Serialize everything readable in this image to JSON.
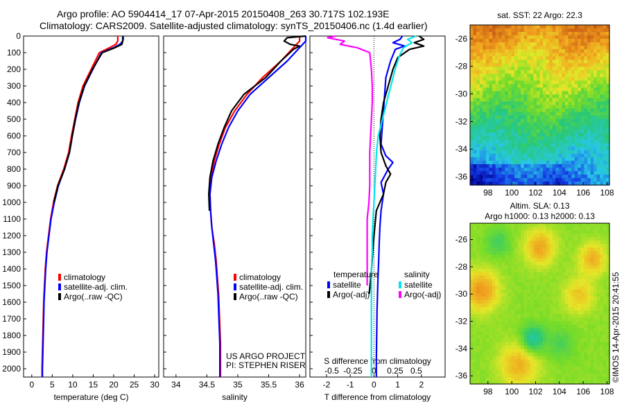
{
  "header": {
    "line1": "Argo profile: AO 5904414_17 07-Apr-2015 20150408_263 30.717S 102.193E",
    "line2": "Climatology: CARS2009. Satellite-adjusted climatology: synTS_20150406.nc (1.4d earlier)"
  },
  "colors": {
    "climatology": "#ff0000",
    "satellite": "#0000ff",
    "argo": "#000000",
    "s_satellite": "#00e5ee",
    "s_argo": "#ff00ff"
  },
  "chart_data": [
    {
      "id": "temperature",
      "type": "line",
      "xlabel": "temperature (deg C)",
      "ylabel": "",
      "xlim": [
        -2,
        31
      ],
      "ylim": [
        2050,
        0
      ],
      "xticks": [
        0,
        5,
        10,
        15,
        20,
        25,
        30
      ],
      "yticks": [
        0,
        100,
        200,
        300,
        400,
        500,
        600,
        700,
        800,
        900,
        1000,
        1100,
        1200,
        1300,
        1400,
        1500,
        1600,
        1700,
        1800,
        1900,
        2000
      ],
      "legend": [
        "climatology",
        "satellite-adj. clim.",
        "Argo(..raw -QC)"
      ],
      "series": [
        {
          "name": "climatology",
          "color": "red",
          "points": [
            [
              21.0,
              0
            ],
            [
              21.0,
              30
            ],
            [
              20.5,
              50
            ],
            [
              19.0,
              70
            ],
            [
              16.5,
              100
            ],
            [
              14.5,
              200
            ],
            [
              12.5,
              300
            ],
            [
              11.3,
              400
            ],
            [
              10.5,
              500
            ],
            [
              9.7,
              600
            ],
            [
              9.0,
              700
            ],
            [
              7.8,
              800
            ],
            [
              6.3,
              900
            ],
            [
              5.3,
              1000
            ],
            [
              4.6,
              1100
            ],
            [
              4.1,
              1200
            ],
            [
              3.6,
              1300
            ],
            [
              3.3,
              1400
            ],
            [
              3.1,
              1500
            ],
            [
              2.9,
              1600
            ],
            [
              2.8,
              1700
            ],
            [
              2.7,
              1800
            ],
            [
              2.6,
              1900
            ],
            [
              2.5,
              2000
            ],
            [
              2.5,
              2050
            ]
          ]
        },
        {
          "name": "satellite-adj. clim.",
          "color": "blue",
          "points": [
            [
              22.2,
              0
            ],
            [
              22.2,
              30
            ],
            [
              21.5,
              50
            ],
            [
              20.0,
              70
            ],
            [
              17.0,
              100
            ],
            [
              14.9,
              200
            ],
            [
              12.9,
              300
            ],
            [
              11.6,
              400
            ],
            [
              10.7,
              500
            ],
            [
              9.9,
              600
            ],
            [
              9.2,
              700
            ],
            [
              8.0,
              800
            ],
            [
              6.5,
              900
            ],
            [
              5.5,
              1000
            ],
            [
              4.7,
              1100
            ],
            [
              4.2,
              1200
            ],
            [
              3.7,
              1300
            ],
            [
              3.4,
              1400
            ],
            [
              3.2,
              1500
            ],
            [
              3.0,
              1600
            ],
            [
              2.9,
              1700
            ],
            [
              2.8,
              1800
            ],
            [
              2.7,
              1900
            ],
            [
              2.6,
              2000
            ],
            [
              2.6,
              2050
            ]
          ]
        },
        {
          "name": "Argo(..raw -QC)",
          "color": "black",
          "points": [
            [
              22.3,
              0
            ],
            [
              22.3,
              20
            ],
            [
              22.0,
              50
            ],
            [
              20.3,
              70
            ],
            [
              17.2,
              100
            ],
            [
              14.8,
              200
            ],
            [
              12.8,
              300
            ],
            [
              11.5,
              400
            ],
            [
              10.6,
              500
            ],
            [
              9.9,
              600
            ],
            [
              9.2,
              700
            ],
            [
              8.0,
              800
            ],
            [
              6.4,
              900
            ],
            [
              5.4,
              1000
            ]
          ]
        }
      ]
    },
    {
      "id": "salinity",
      "type": "line",
      "xlabel": "salinity",
      "ylabel": "",
      "xlim": [
        33.8,
        36.1
      ],
      "ylim": [
        2050,
        0
      ],
      "xticks": [
        34,
        34.5,
        35,
        35.5,
        36
      ],
      "legend": [
        "climatology",
        "satellite-adj. clim.",
        "Argo(..raw -QC)"
      ],
      "annotation": [
        "US ARGO PROJECT",
        "PI: STEPHEN RISER"
      ],
      "series": [
        {
          "name": "climatology",
          "color": "red",
          "points": [
            [
              36.0,
              0
            ],
            [
              36.0,
              30
            ],
            [
              35.9,
              70
            ],
            [
              35.7,
              150
            ],
            [
              35.4,
              250
            ],
            [
              35.15,
              350
            ],
            [
              34.95,
              450
            ],
            [
              34.8,
              550
            ],
            [
              34.7,
              650
            ],
            [
              34.62,
              750
            ],
            [
              34.57,
              850
            ],
            [
              34.55,
              950
            ],
            [
              34.56,
              1050
            ],
            [
              34.58,
              1150
            ],
            [
              34.62,
              1250
            ],
            [
              34.65,
              1350
            ],
            [
              34.67,
              1450
            ],
            [
              34.69,
              1550
            ],
            [
              34.7,
              1650
            ],
            [
              34.71,
              1750
            ],
            [
              34.72,
              1850
            ],
            [
              34.72,
              1950
            ],
            [
              34.72,
              2050
            ]
          ]
        },
        {
          "name": "satellite-adj. clim.",
          "color": "blue",
          "points": [
            [
              36.1,
              0
            ],
            [
              36.1,
              30
            ],
            [
              36.0,
              70
            ],
            [
              35.8,
              150
            ],
            [
              35.5,
              250
            ],
            [
              35.2,
              350
            ],
            [
              35.0,
              450
            ],
            [
              34.85,
              550
            ],
            [
              34.74,
              650
            ],
            [
              34.65,
              750
            ],
            [
              34.58,
              850
            ],
            [
              34.55,
              950
            ],
            [
              34.56,
              1050
            ],
            [
              34.58,
              1150
            ],
            [
              34.61,
              1250
            ],
            [
              34.64,
              1350
            ],
            [
              34.66,
              1450
            ],
            [
              34.68,
              1550
            ],
            [
              34.69,
              1650
            ],
            [
              34.7,
              1750
            ],
            [
              34.71,
              1850
            ],
            [
              34.71,
              1950
            ],
            [
              34.71,
              2050
            ]
          ]
        },
        {
          "name": "Argo(..raw -QC)",
          "color": "black",
          "points": [
            [
              36.1,
              0
            ],
            [
              35.8,
              10
            ],
            [
              35.75,
              30
            ],
            [
              35.85,
              50
            ],
            [
              36.0,
              60
            ],
            [
              35.9,
              80
            ],
            [
              35.7,
              150
            ],
            [
              35.45,
              250
            ],
            [
              35.1,
              350
            ],
            [
              34.9,
              450
            ],
            [
              34.78,
              550
            ],
            [
              34.68,
              650
            ],
            [
              34.6,
              750
            ],
            [
              34.55,
              850
            ],
            [
              34.53,
              950
            ],
            [
              34.54,
              1050
            ]
          ]
        }
      ]
    },
    {
      "id": "difference",
      "type": "line",
      "xlabel": "T difference from climatology",
      "xlabel_top": "S difference from climatology",
      "ylabel": "",
      "xlim": [
        -2.7,
        3.0
      ],
      "ylim": [
        2050,
        0
      ],
      "xticks_T": [
        -2,
        -1,
        0,
        1,
        2
      ],
      "xticks_S": [
        -0.5,
        -0.25,
        0,
        0.25,
        0.5
      ],
      "legend_T_title": "temperature",
      "legend_S_title": "salinity",
      "legend_T": [
        "satellite",
        "Argo(-adj)"
      ],
      "legend_S": [
        "satellite",
        "Argo(-adj)"
      ],
      "series": [
        {
          "name": "satellite",
          "group": "temperature",
          "color": "blue",
          "points": [
            [
              1.2,
              0
            ],
            [
              1.1,
              20
            ],
            [
              0.8,
              40
            ],
            [
              1.3,
              60
            ],
            [
              0.9,
              80
            ],
            [
              0.7,
              150
            ],
            [
              0.5,
              250
            ],
            [
              0.45,
              350
            ],
            [
              0.4,
              450
            ],
            [
              0.35,
              550
            ],
            [
              0.3,
              650
            ],
            [
              0.5,
              720
            ],
            [
              0.8,
              760
            ],
            [
              0.6,
              800
            ],
            [
              0.3,
              880
            ],
            [
              0.4,
              950
            ],
            [
              0.3,
              1050
            ],
            [
              0.25,
              1150
            ],
            [
              0.22,
              1250
            ],
            [
              0.2,
              1350
            ],
            [
              0.17,
              1450
            ],
            [
              0.15,
              1550
            ],
            [
              0.13,
              1650
            ],
            [
              0.12,
              1750
            ],
            [
              0.11,
              1850
            ],
            [
              0.1,
              1950
            ],
            [
              0.1,
              2050
            ]
          ]
        },
        {
          "name": "Argo(-adj)",
          "group": "temperature",
          "color": "black",
          "points": [
            [
              1.9,
              0
            ],
            [
              2.1,
              20
            ],
            [
              1.7,
              40
            ],
            [
              2.1,
              60
            ],
            [
              1.5,
              80
            ],
            [
              1.0,
              130
            ],
            [
              0.8,
              200
            ],
            [
              0.6,
              300
            ],
            [
              0.4,
              400
            ],
            [
              0.3,
              500
            ],
            [
              0.25,
              600
            ],
            [
              0.3,
              700
            ],
            [
              0.5,
              780
            ],
            [
              0.7,
              830
            ],
            [
              0.5,
              880
            ],
            [
              0.4,
              950
            ],
            [
              0.1,
              1050
            ],
            [
              0.0,
              1200
            ],
            [
              -0.1,
              1400
            ],
            [
              -0.2,
              1550
            ]
          ]
        },
        {
          "name": "satellite",
          "group": "salinity",
          "color": "cyan",
          "points": [
            [
              0.5,
              0
            ],
            [
              0.4,
              20
            ],
            [
              0.45,
              40
            ],
            [
              0.35,
              70
            ],
            [
              0.3,
              120
            ],
            [
              0.25,
              200
            ],
            [
              0.2,
              300
            ],
            [
              0.15,
              400
            ],
            [
              0.1,
              500
            ],
            [
              0.05,
              600
            ],
            [
              0.03,
              700
            ],
            [
              0.02,
              800
            ],
            [
              0.01,
              900
            ],
            [
              0.0,
              1000
            ],
            [
              -0.01,
              1100
            ],
            [
              -0.02,
              1200
            ],
            [
              -0.02,
              1300
            ],
            [
              -0.03,
              1400
            ],
            [
              -0.03,
              1500
            ],
            [
              -0.03,
              1600
            ],
            [
              -0.03,
              1700
            ],
            [
              -0.03,
              1800
            ],
            [
              -0.03,
              1900
            ],
            [
              -0.03,
              2000
            ],
            [
              -0.03,
              2050
            ]
          ]
        },
        {
          "name": "Argo(-adj)",
          "group": "salinity",
          "color": "magenta",
          "points": [
            [
              -0.45,
              0
            ],
            [
              -0.55,
              10
            ],
            [
              -0.35,
              30
            ],
            [
              -0.4,
              50
            ],
            [
              -0.2,
              70
            ],
            [
              -0.05,
              100
            ],
            [
              -0.03,
              200
            ],
            [
              -0.02,
              300
            ],
            [
              -0.02,
              400
            ],
            [
              -0.03,
              500
            ],
            [
              -0.04,
              600
            ],
            [
              -0.05,
              700
            ],
            [
              -0.05,
              800
            ],
            [
              -0.05,
              900
            ],
            [
              -0.06,
              1000
            ],
            [
              -0.08,
              1100
            ],
            [
              -0.08,
              1200
            ],
            [
              -0.08,
              1300
            ],
            [
              -0.08,
              1400
            ],
            [
              -0.08,
              1500
            ]
          ]
        }
      ]
    },
    {
      "id": "sst_map",
      "type": "heatmap",
      "title": "sat. SST: 22 Argo: 22.3",
      "xlim": [
        96.5,
        108.2
      ],
      "ylim": [
        -36.6,
        -25
      ],
      "xticks": [
        98,
        100,
        102,
        104,
        106,
        108
      ],
      "yticks": [
        -26,
        -28,
        -30,
        -32,
        -34,
        -36
      ]
    },
    {
      "id": "sla_map",
      "type": "heatmap",
      "title": "Altim. SLA: 0.13",
      "subtitle": "Argo h1000: 0.13 h2000: 0.13",
      "xlim": [
        96.5,
        108.2
      ],
      "ylim": [
        -36.6,
        -24.8
      ],
      "xticks": [
        98,
        100,
        102,
        104,
        106,
        108
      ],
      "yticks": [
        -26,
        -28,
        -30,
        -32,
        -34,
        -36
      ]
    }
  ],
  "credit": "©IMOS 14-Apr-2015 20:41:55"
}
